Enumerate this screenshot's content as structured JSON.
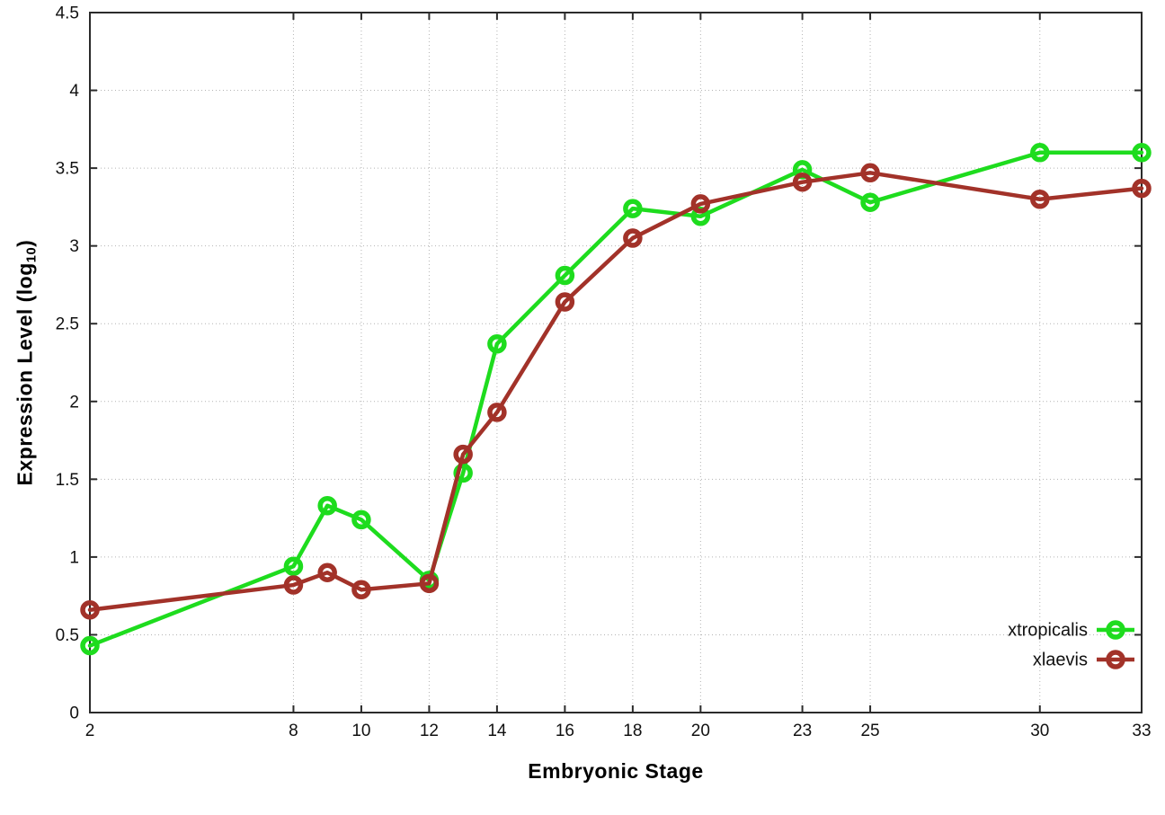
{
  "chart_data": {
    "type": "line",
    "title": "",
    "xlabel": "Embryonic Stage",
    "ylabel": "Expression Level (log10)",
    "ylabel_parts": {
      "pre": "Expression Level (log",
      "sub": "10",
      "post": ")"
    },
    "xlim": [
      2,
      33
    ],
    "ylim": [
      0,
      4.5
    ],
    "x_ticks": [
      2,
      8,
      10,
      12,
      14,
      16,
      18,
      20,
      23,
      25,
      30,
      33
    ],
    "y_ticks": [
      0,
      0.5,
      1,
      1.5,
      2,
      2.5,
      3,
      3.5,
      4,
      4.5
    ],
    "grid": true,
    "grid_style": "dotted",
    "legend_position": "bottom-right-inside",
    "series": [
      {
        "name": "xtropicalis",
        "color": "#1edc1e",
        "marker": "open-circle",
        "x": [
          2,
          8,
          9,
          10,
          12,
          13,
          14,
          16,
          18,
          20,
          23,
          25,
          30,
          33
        ],
        "y": [
          0.43,
          0.94,
          1.33,
          1.24,
          0.85,
          1.54,
          2.37,
          2.81,
          3.24,
          3.19,
          3.49,
          3.28,
          3.6,
          3.6
        ]
      },
      {
        "name": "xlaevis",
        "color": "#a23229",
        "marker": "open-circle",
        "x": [
          2,
          8,
          9,
          10,
          12,
          13,
          14,
          16,
          18,
          20,
          23,
          25,
          30,
          33
        ],
        "y": [
          0.66,
          0.82,
          0.9,
          0.79,
          0.83,
          1.66,
          1.93,
          2.64,
          3.05,
          3.27,
          3.41,
          3.47,
          3.3,
          3.37
        ]
      }
    ],
    "colors": {
      "axis": "#2b2b2b",
      "grid": "#b4b4b4",
      "tick_text": "#111111",
      "background": "#ffffff"
    }
  }
}
